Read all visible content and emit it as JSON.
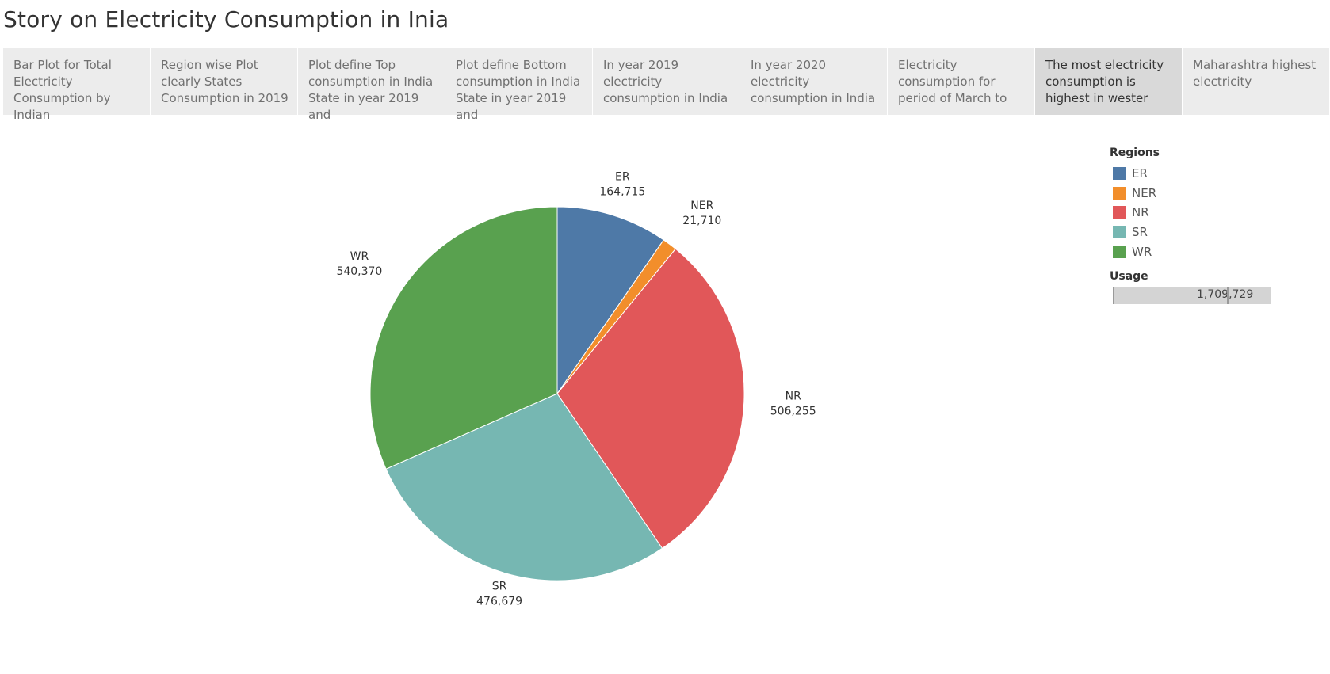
{
  "story": {
    "title": "Story on Electricity Consumption in Inia"
  },
  "nav": {
    "prev_icon": "chevron-left-icon",
    "story_points": [
      {
        "caption": "Bar Plot for Total Electricity Consumption by Indian",
        "active": false
      },
      {
        "caption": "Region wise Plot clearly States Consumption in 2019",
        "active": false
      },
      {
        "caption": "Plot define Top consumption in India State in year 2019 and",
        "active": false
      },
      {
        "caption": "Plot define Bottom consumption in India State in year 2019 and",
        "active": false
      },
      {
        "caption": "In year 2019 electricity consumption in India",
        "active": false
      },
      {
        "caption": "In year 2020 electricity consumption in India",
        "active": false
      },
      {
        "caption": "Electricity consumption for period of March to",
        "active": false
      },
      {
        "caption": "The most electricity consumption  is highest in wester",
        "active": true
      },
      {
        "caption": "Maharashtra highest electricity",
        "active": false
      }
    ]
  },
  "legend": {
    "title": "Regions",
    "items": [
      {
        "label": "ER",
        "color": "#4e79a7"
      },
      {
        "label": "NER",
        "color": "#f28e2b"
      },
      {
        "label": "NR",
        "color": "#e15759"
      },
      {
        "label": "SR",
        "color": "#76b7b2"
      },
      {
        "label": "WR",
        "color": "#59a14f"
      }
    ],
    "usage_title": "Usage",
    "usage_value": "1,709,729"
  },
  "chart_data": {
    "type": "pie",
    "categories": [
      "ER",
      "NER",
      "NR",
      "SR",
      "WR"
    ],
    "values": [
      164715,
      21710,
      506255,
      476679,
      540370
    ],
    "value_labels": [
      "164,715",
      "21,710",
      "506,255",
      "476,679",
      "540,370"
    ],
    "colors": [
      "#4e79a7",
      "#f28e2b",
      "#e15759",
      "#76b7b2",
      "#59a14f"
    ],
    "start": "12 o'clock, clockwise",
    "legend": "right",
    "legend_title": "Regions"
  }
}
